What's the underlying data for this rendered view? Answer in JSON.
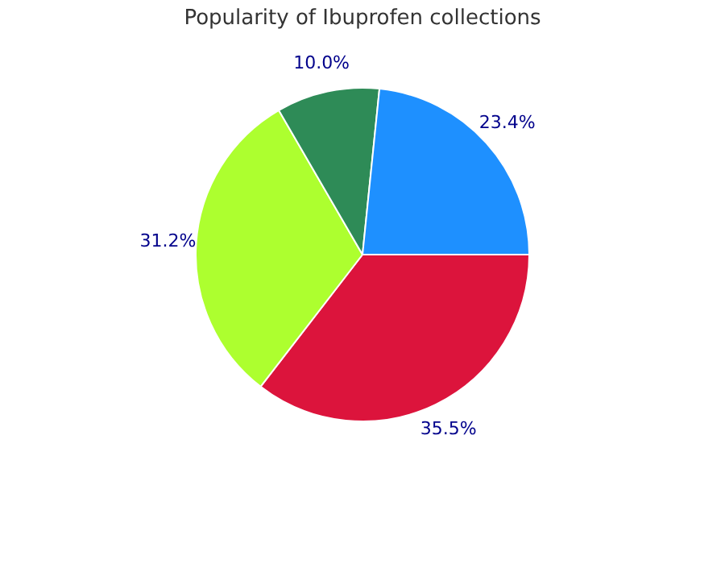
{
  "chart_data": {
    "type": "pie",
    "title": "Popularity of Ibuprofen collections",
    "categories": [
      null,
      null,
      null,
      null
    ],
    "values": [
      35.5,
      31.2,
      10.0,
      23.4
    ],
    "value_labels": [
      "35.5%",
      "31.2%",
      "10.0%",
      "23.4%"
    ],
    "colors": [
      "#dc143c",
      "#adff2f",
      "#2e8b57",
      "#1e90ff"
    ],
    "legend": false
  }
}
